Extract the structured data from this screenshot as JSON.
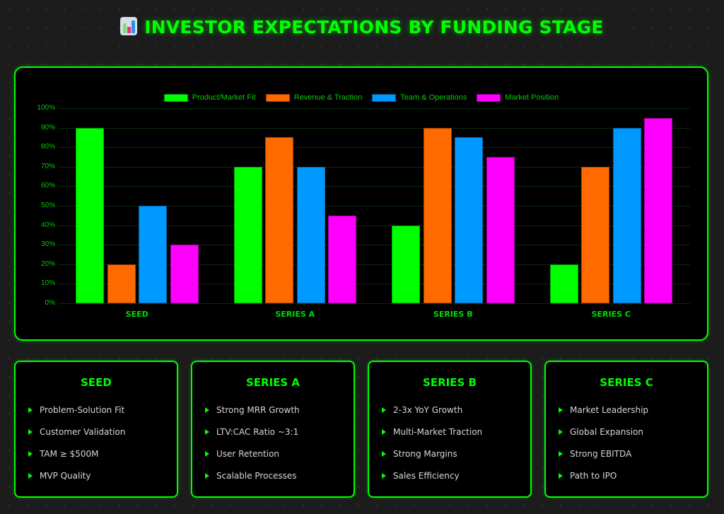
{
  "title": "INVESTOR EXPECTATIONS BY FUNDING STAGE",
  "title_icon": "bar-chart-icon",
  "colors": {
    "accent": "#00ff00",
    "product_market_fit": "#00ff00",
    "revenue_traction": "#ff6a00",
    "team_operations": "#0099ff",
    "market_position": "#ff00ff"
  },
  "chart_data": {
    "type": "bar",
    "title": "",
    "xlabel": "",
    "ylabel": "",
    "ylim": [
      0,
      100
    ],
    "y_ticks": [
      "0%",
      "10%",
      "20%",
      "30%",
      "40%",
      "50%",
      "60%",
      "70%",
      "80%",
      "90%",
      "100%"
    ],
    "grid": true,
    "legend_position": "top",
    "categories": [
      "SEED",
      "SERIES A",
      "SERIES B",
      "SERIES C"
    ],
    "series": [
      {
        "name": "Product/Market Fit",
        "color": "#00ff00",
        "values": [
          90,
          70,
          40,
          20
        ]
      },
      {
        "name": "Revenue & Traction",
        "color": "#ff6a00",
        "values": [
          20,
          85,
          90,
          70
        ]
      },
      {
        "name": "Team & Operations",
        "color": "#0099ff",
        "values": [
          50,
          70,
          85,
          90
        ]
      },
      {
        "name": "Market Position",
        "color": "#ff00ff",
        "values": [
          30,
          45,
          75,
          95
        ]
      }
    ]
  },
  "cards": [
    {
      "title": "SEED",
      "items": [
        "Problem-Solution Fit",
        "Customer Validation",
        "TAM ≥ $500M",
        "MVP Quality"
      ]
    },
    {
      "title": "SERIES A",
      "items": [
        "Strong MRR Growth",
        "LTV:CAC Ratio ~3:1",
        "User Retention",
        "Scalable Processes"
      ]
    },
    {
      "title": "SERIES B",
      "items": [
        "2-3x YoY Growth",
        "Multi-Market Traction",
        "Strong Margins",
        "Sales Efficiency"
      ]
    },
    {
      "title": "SERIES C",
      "items": [
        "Market Leadership",
        "Global Expansion",
        "Strong EBITDA",
        "Path to IPO"
      ]
    }
  ]
}
